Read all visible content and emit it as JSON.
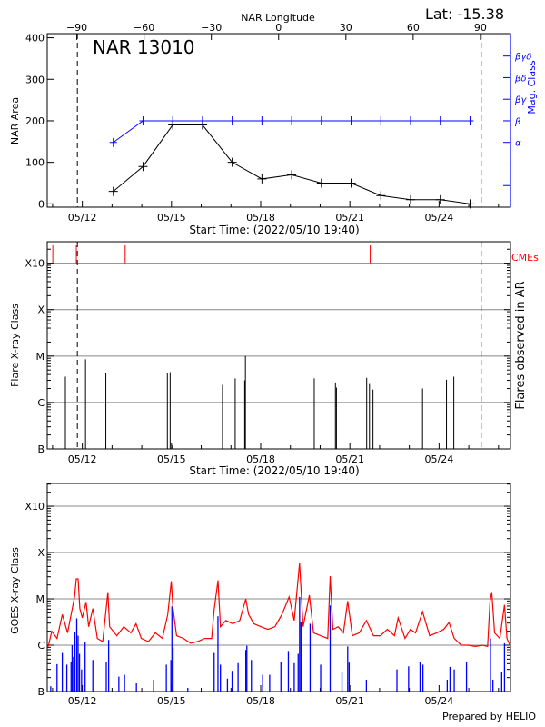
{
  "header": {
    "latitude_label": "Lat: -15.38",
    "top_axis_label": "NAR Longitude",
    "region_title": "NAR 13010",
    "prepared_by": "Prepared by HELIO"
  },
  "colors": {
    "area": "#000000",
    "mag_class": "#0000ff",
    "cme": "#ff0000",
    "goes_long": "#ff0000",
    "goes_short": "#0000ff",
    "grid": "#888888"
  },
  "chart_data": [
    {
      "type": "line",
      "panel": "nar",
      "xlabel": "Start Time: (2022/05/10 19:40)",
      "ylabel": "NAR Area",
      "y2label": "Mag. Class",
      "x2label": "NAR Longitude",
      "xlim": [
        "05/10 19:40",
        "05/26 09:40"
      ],
      "x_ticks": [
        "05/12",
        "05/15",
        "05/18",
        "05/21",
        "05/24"
      ],
      "ylim": [
        -8,
        410
      ],
      "y_ticks": [
        0,
        100,
        200,
        300,
        400
      ],
      "x2lim": [
        -103.2,
        103.4
      ],
      "x2_ticks": [
        -90,
        -60,
        -30,
        0,
        30,
        60,
        90
      ],
      "y2_categories": [
        "",
        "",
        "α",
        "β",
        "βγ",
        "βδ",
        "βγδ"
      ],
      "limb_lines": [
        "05/11 20:00",
        "05/25 10:00"
      ],
      "times": [
        "05/13 01:00",
        "05/14 01:00",
        "05/15 01:00",
        "05/16 01:00",
        "05/17 01:00",
        "05/18 01:00",
        "05/19 01:00",
        "05/20 01:00",
        "05/21 01:00",
        "05/22 01:00",
        "05/23 01:00",
        "05/24 01:00",
        "05/25 01:00"
      ],
      "series": [
        {
          "values": [
            30,
            90,
            190,
            190,
            100,
            60,
            70,
            50,
            50,
            20,
            10,
            10,
            0
          ]
        },
        {
          "values": [
            "α",
            "β",
            "β",
            "β",
            "β",
            "β",
            "β",
            "β",
            "β",
            "β",
            "β",
            "β",
            "β"
          ]
        }
      ]
    },
    {
      "type": "bar",
      "panel": "flares",
      "xlabel": "Start Time: (2022/05/10 19:40)",
      "ylabel": "Flare X-ray Class",
      "y2label": "Flares observed in AR",
      "cme_label": "CMEs",
      "xlim": [
        "05/10 19:40",
        "05/26 09:40"
      ],
      "x_ticks": [
        "05/12",
        "05/15",
        "05/18",
        "05/21",
        "05/24"
      ],
      "y_scale": "log",
      "ylim": [
        1e-07,
        0.0029
      ],
      "y_ticks": [
        {
          "label": "B",
          "value": 1e-07
        },
        {
          "label": "C",
          "value": 1e-06
        },
        {
          "label": "M",
          "value": 1e-05
        },
        {
          "label": "X",
          "value": 0.0001
        },
        {
          "label": "X10",
          "value": 0.001
        }
      ],
      "grid": true,
      "limb_lines": [
        "05/11 20:00",
        "05/25 10:00"
      ],
      "cmes": [
        "05/11 00:10",
        "05/11 19:10",
        "05/13 10:35",
        "05/21 16:25"
      ],
      "flares": [
        [
          "05/11 10:20",
          3.6e-06
        ],
        [
          "05/12 02:35",
          8.5e-06
        ],
        [
          "05/12 19:00",
          4.3e-06
        ],
        [
          "05/14 20:40",
          4.3e-06
        ],
        [
          "05/14 22:55",
          4.5e-06
        ],
        [
          "05/15 00:20",
          1.2e-07
        ],
        [
          "05/16 17:10",
          2.4e-06
        ],
        [
          "05/17 03:25",
          3.3e-06
        ],
        [
          "05/17 11:05",
          3e-06
        ],
        [
          "05/17 11:40",
          1e-05
        ],
        [
          "05/19 19:15",
          3.3e-06
        ],
        [
          "05/20 12:20",
          2.7e-06
        ],
        [
          "05/20 13:10",
          2.1e-06
        ],
        [
          "05/21 13:35",
          3.4e-06
        ],
        [
          "05/21 15:50",
          2.5e-06
        ],
        [
          "05/21 18:40",
          1.9e-06
        ],
        [
          "05/23 10:40",
          2e-06
        ],
        [
          "05/24 06:00",
          3.1e-06
        ],
        [
          "05/24 11:55",
          3.6e-06
        ]
      ]
    },
    {
      "type": "line",
      "panel": "goes",
      "ylabel": "GOES X-ray Class",
      "xlim": [
        "05/10 19:40",
        "05/26 09:40"
      ],
      "x_ticks": [
        "05/12",
        "05/15",
        "05/18",
        "05/21",
        "05/24"
      ],
      "y_scale": "log",
      "ylim": [
        1e-07,
        0.0031
      ],
      "y_ticks": [
        {
          "label": "B",
          "value": 1e-07
        },
        {
          "label": "C",
          "value": 1e-06
        },
        {
          "label": "M",
          "value": 1e-05
        },
        {
          "label": "X",
          "value": 0.0001
        },
        {
          "label": "X10",
          "value": 0.001
        }
      ],
      "grid": true,
      "series": [
        {
          "values": [
            [
              "05/10 20:30",
              9.4e-07
            ],
            [
              "05/10 23:20",
              2e-06
            ],
            [
              "05/11 03:35",
              1.4e-06
            ],
            [
              "05/11 07:50",
              4.6e-06
            ],
            [
              "05/11 12:05",
              1.85e-06
            ],
            [
              "05/11 14:55",
              4.6e-06
            ],
            [
              "05/11 17:45",
              1.1e-05
            ],
            [
              "05/11 19:10",
              2.7e-05
            ],
            [
              "05/11 20:35",
              2.7e-05
            ],
            [
              "05/11 22:00",
              6.2e-06
            ],
            [
              "05/12 00:00",
              3.9e-06
            ],
            [
              "05/12 03:05",
              8.6e-06
            ],
            [
              "05/12 05:05",
              2.5e-06
            ],
            [
              "05/12 08:30",
              6.2e-06
            ],
            [
              "05/12 12:10",
              1.4e-06
            ],
            [
              "05/12 16:30",
              1.2e-06
            ],
            [
              "05/12 20:40",
              1.4e-05
            ],
            [
              "05/12 22:05",
              2.5e-06
            ],
            [
              "05/13 03:50",
              1.6e-06
            ],
            [
              "05/13 09:30",
              2.5e-06
            ],
            [
              "05/13 15:10",
              1.85e-06
            ],
            [
              "05/13 19:25",
              2.9e-06
            ],
            [
              "05/13 23:40",
              1.4e-06
            ],
            [
              "05/14 05:20",
              1.2e-06
            ],
            [
              "05/14 11:00",
              1.85e-06
            ],
            [
              "05/14 16:40",
              1.4e-06
            ],
            [
              "05/14 21:00",
              4.6e-06
            ],
            [
              "05/14 23:50",
              2.4e-05
            ],
            [
              "05/15 01:15",
              6.2e-06
            ],
            [
              "05/15 04:05",
              1.6e-06
            ],
            [
              "05/15 09:45",
              1.4e-06
            ],
            [
              "05/15 15:25",
              1.1e-06
            ],
            [
              "05/15 21:05",
              1.2e-06
            ],
            [
              "05/16 02:45",
              1.4e-06
            ],
            [
              "05/16 08:25",
              1.4e-06
            ],
            [
              "05/16 10:25",
              5.9e-06
            ],
            [
              "05/16 13:30",
              2.5e-05
            ],
            [
              "05/16 15:30",
              2.5e-06
            ],
            [
              "05/16 19:50",
              3.4e-06
            ],
            [
              "05/17 01:30",
              2.9e-06
            ],
            [
              "05/17 07:05",
              3.4e-06
            ],
            [
              "05/17 12:00",
              1e-05
            ],
            [
              "05/17 14:15",
              4.6e-06
            ],
            [
              "05/17 18:30",
              2.9e-06
            ],
            [
              "05/18 00:10",
              2.5e-06
            ],
            [
              "05/18 05:50",
              2.2e-06
            ],
            [
              "05/18 11:30",
              2.5e-06
            ],
            [
              "05/18 17:10",
              4.6e-06
            ],
            [
              "05/18 22:55",
              1.1e-05
            ],
            [
              "05/19 03:05",
              3.4e-06
            ],
            [
              "05/19 07:25",
              5.9e-05
            ],
            [
              "05/19 10:15",
              2.5e-06
            ],
            [
              "05/19 15:20",
              1.2e-05
            ],
            [
              "05/19 18:40",
              1.85e-06
            ],
            [
              "05/20 00:25",
              1.6e-06
            ],
            [
              "05/20 06:05",
              1.4e-06
            ],
            [
              "05/20 08:05",
              3.1e-05
            ],
            [
              "05/20 10:20",
              2.2e-06
            ],
            [
              "05/20 14:35",
              2.5e-06
            ],
            [
              "05/20 18:50",
              1.85e-06
            ],
            [
              "05/20 22:15",
              9e-06
            ],
            [
              "05/21 02:00",
              1.6e-06
            ],
            [
              "05/21 07:35",
              1.85e-06
            ],
            [
              "05/21 13:20",
              3.4e-06
            ],
            [
              "05/21 19:00",
              1.6e-06
            ],
            [
              "05/22 00:40",
              1.6e-06
            ],
            [
              "05/22 06:20",
              2.2e-06
            ],
            [
              "05/22 12:00",
              1.6e-06
            ],
            [
              "05/22 14:55",
              3.9e-06
            ],
            [
              "05/22 20:30",
              1.4e-06
            ],
            [
              "05/23 00:50",
              2.2e-06
            ],
            [
              "05/23 05:00",
              1.85e-06
            ],
            [
              "05/23 10:40",
              5.3e-06
            ],
            [
              "05/23 16:25",
              1.6e-06
            ],
            [
              "05/23 22:05",
              1.85e-06
            ],
            [
              "05/24 03:45",
              2.2e-06
            ],
            [
              "05/24 08:00",
              3.1e-06
            ],
            [
              "05/24 12:15",
              1.4e-06
            ],
            [
              "05/24 17:55",
              1e-06
            ],
            [
              "05/24 23:35",
              1e-06
            ],
            [
              "05/25 05:20",
              9.4e-07
            ],
            [
              "05/25 11:00",
              1e-06
            ],
            [
              "05/25 15:10",
              9.4e-07
            ],
            [
              "05/25 17:10",
              9e-06
            ],
            [
              "05/25 18:35",
              1.4e-05
            ],
            [
              "05/25 20:50",
              1.85e-06
            ],
            [
              "05/26 01:05",
              1.4e-06
            ],
            [
              "05/26 04:50",
              7.4e-06
            ],
            [
              "05/26 06:50",
              1.4e-06
            ],
            [
              "05/26 09:40",
              9.4e-07
            ]
          ]
        },
        {
          "values": [
            [
              "05/10 22:30",
              1.3e-07
            ],
            [
              "05/11 03:35",
              3.9e-07
            ],
            [
              "05/11 07:50",
              6.8e-07
            ],
            [
              "05/11 11:30",
              3.8e-07
            ],
            [
              "05/11 14:55",
              4.3e-07
            ],
            [
              "05/11 15:45",
              1e-06
            ],
            [
              "05/11 16:55",
              5.6e-07
            ],
            [
              "05/11 18:00",
              1.9e-06
            ],
            [
              "05/11 19:30",
              3.8e-06
            ],
            [
              "05/11 20:35",
              1.6e-06
            ],
            [
              "05/11 21:45",
              6.5e-07
            ],
            [
              "05/11 23:25",
              3e-07
            ],
            [
              "05/12 02:15",
              1.2e-06
            ],
            [
              "05/12 08:30",
              4.8e-07
            ],
            [
              "05/12 19:20",
              4.3e-07
            ],
            [
              "05/12 21:15",
              1.3e-06
            ],
            [
              "05/13 05:30",
              2.1e-07
            ],
            [
              "05/13 10:05",
              2.3e-07
            ],
            [
              "05/13 19:40",
              1.5e-07
            ],
            [
              "05/14 09:35",
              1.8e-07
            ],
            [
              "05/14 19:50",
              3.8e-07
            ],
            [
              "05/14 23:30",
              4.8e-07
            ],
            [
              "05/15 00:20",
              6.9e-06
            ],
            [
              "05/15 01:15",
              8.7e-07
            ],
            [
              "05/15 13:10",
              1.2e-07
            ],
            [
              "05/16 10:25",
              6.8e-07
            ],
            [
              "05/16 13:30",
              4.2e-06
            ],
            [
              "05/16 15:30",
              3.8e-07
            ],
            [
              "05/16 21:10",
              1.9e-07
            ],
            [
              "05/17 00:55",
              2.8e-07
            ],
            [
              "05/17 05:45",
              4.1e-07
            ],
            [
              "05/17 12:00",
              7.9e-07
            ],
            [
              "05/17 12:50",
              9.7e-07
            ],
            [
              "05/17 16:30",
              4.8e-07
            ],
            [
              "05/18 01:35",
              2.3e-07
            ],
            [
              "05/18 07:15",
              2.3e-07
            ],
            [
              "05/18 16:20",
              4.4e-07
            ],
            [
              "05/18 22:20",
              7.5e-07
            ],
            [
              "05/19 03:05",
              4.1e-07
            ],
            [
              "05/19 06:15",
              6.5e-07
            ],
            [
              "05/19 07:25",
              1.1e-05
            ],
            [
              "05/19 08:30",
              3.1e-06
            ],
            [
              "05/19 15:55",
              2.9e-06
            ],
            [
              "05/20 00:25",
              3.8e-07
            ],
            [
              "05/20 08:05",
              7.2e-06
            ],
            [
              "05/20 17:40",
              2.6e-07
            ],
            [
              "05/20 22:15",
              9.4e-07
            ],
            [
              "05/20 23:25",
              4.2e-07
            ],
            [
              "05/21 13:20",
              1.8e-07
            ],
            [
              "05/22 14:00",
              3e-07
            ],
            [
              "05/22 23:25",
              3.5e-07
            ],
            [
              "05/23 08:40",
              4.3e-07
            ],
            [
              "05/23 11:00",
              3.8e-07
            ],
            [
              "05/24 06:35",
              1.8e-07
            ],
            [
              "05/24 08:50",
              3.4e-07
            ],
            [
              "05/24 12:15",
              3e-07
            ],
            [
              "05/24 22:10",
              4.4e-07
            ],
            [
              "05/25 17:30",
              1.4e-06
            ],
            [
              "05/25 19:30",
              1.8e-07
            ],
            [
              "05/26 02:35",
              2.7e-07
            ],
            [
              "05/26 04:50",
              1.1e-06
            ]
          ]
        }
      ]
    }
  ]
}
